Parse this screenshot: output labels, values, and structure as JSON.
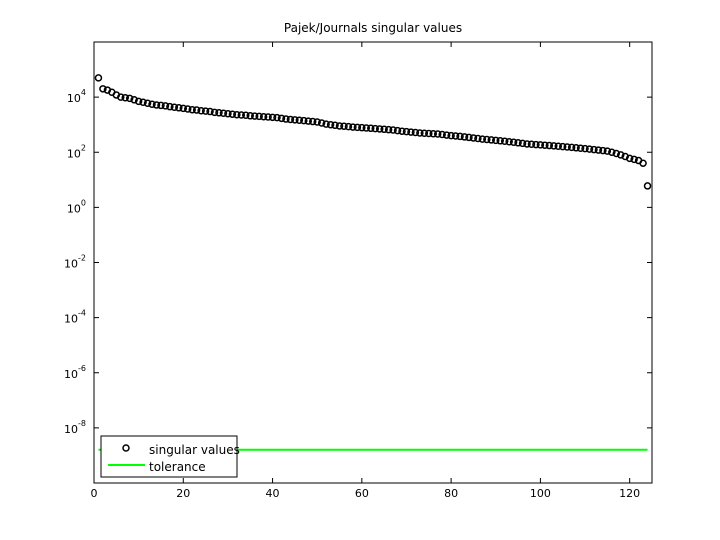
{
  "chart_data": {
    "type": "scatter",
    "title": "Pajek/Journals singular values",
    "xlabel": "",
    "ylabel": "",
    "xlim": [
      0,
      125
    ],
    "ylim": [
      1e-10,
      1000000.0
    ],
    "yscale": "log",
    "grid": false,
    "legend_position": "bottom-left",
    "x_ticks": [
      0,
      20,
      40,
      60,
      80,
      100,
      120
    ],
    "x_tick_labels": [
      "0",
      "20",
      "40",
      "60",
      "80",
      "100",
      "120"
    ],
    "y_ticks": [
      {
        "value": 10000.0,
        "base": "10",
        "exp": "4"
      },
      {
        "value": 100.0,
        "base": "10",
        "exp": "2"
      },
      {
        "value": 1.0,
        "base": "10",
        "exp": "0"
      },
      {
        "value": 0.01,
        "base": "10",
        "exp": "-2"
      },
      {
        "value": 0.0001,
        "base": "10",
        "exp": "-4"
      },
      {
        "value": 1e-06,
        "base": "10",
        "exp": "-6"
      },
      {
        "value": 1e-08,
        "base": "10",
        "exp": "-8"
      }
    ],
    "series": [
      {
        "name": "singular values",
        "marker": "circle",
        "color": "#000000",
        "x": [
          1,
          2,
          3,
          4,
          5,
          6,
          7,
          8,
          9,
          10,
          11,
          12,
          13,
          14,
          15,
          16,
          17,
          18,
          19,
          20,
          21,
          22,
          23,
          24,
          25,
          26,
          27,
          28,
          29,
          30,
          31,
          32,
          33,
          34,
          35,
          36,
          37,
          38,
          39,
          40,
          41,
          42,
          43,
          44,
          45,
          46,
          47,
          48,
          49,
          50,
          51,
          52,
          53,
          54,
          55,
          56,
          57,
          58,
          59,
          60,
          61,
          62,
          63,
          64,
          65,
          66,
          67,
          68,
          69,
          70,
          71,
          72,
          73,
          74,
          75,
          76,
          77,
          78,
          79,
          80,
          81,
          82,
          83,
          84,
          85,
          86,
          87,
          88,
          89,
          90,
          91,
          92,
          93,
          94,
          95,
          96,
          97,
          98,
          99,
          100,
          101,
          102,
          103,
          104,
          105,
          106,
          107,
          108,
          109,
          110,
          111,
          112,
          113,
          114,
          115,
          116,
          117,
          118,
          119,
          120,
          121,
          122,
          123,
          124
        ],
        "values": [
          50000,
          20000,
          18000,
          15000,
          12000,
          10000,
          9500,
          9000,
          8000,
          7000,
          6500,
          6000,
          5500,
          5200,
          5000,
          4800,
          4500,
          4300,
          4100,
          3900,
          3700,
          3500,
          3400,
          3200,
          3100,
          3000,
          2800,
          2700,
          2600,
          2500,
          2400,
          2300,
          2250,
          2200,
          2100,
          2050,
          2000,
          1950,
          1900,
          1850,
          1800,
          1700,
          1600,
          1550,
          1500,
          1450,
          1400,
          1350,
          1300,
          1250,
          1150,
          1050,
          1000,
          950,
          900,
          880,
          850,
          820,
          800,
          780,
          760,
          740,
          720,
          700,
          680,
          660,
          640,
          610,
          580,
          560,
          540,
          520,
          500,
          490,
          480,
          470,
          460,
          440,
          420,
          400,
          390,
          375,
          360,
          345,
          330,
          315,
          300,
          290,
          280,
          270,
          260,
          250,
          240,
          230,
          220,
          210,
          200,
          195,
          190,
          185,
          180,
          175,
          170,
          165,
          160,
          155,
          150,
          145,
          140,
          135,
          130,
          125,
          120,
          115,
          110,
          100,
          90,
          80,
          70,
          60,
          55,
          50,
          40,
          6
        ]
      },
      {
        "name": "tolerance",
        "marker": "line",
        "color": "#00ff00",
        "x": [
          1,
          124
        ],
        "values": [
          1.6e-09,
          1.6e-09
        ]
      }
    ]
  }
}
